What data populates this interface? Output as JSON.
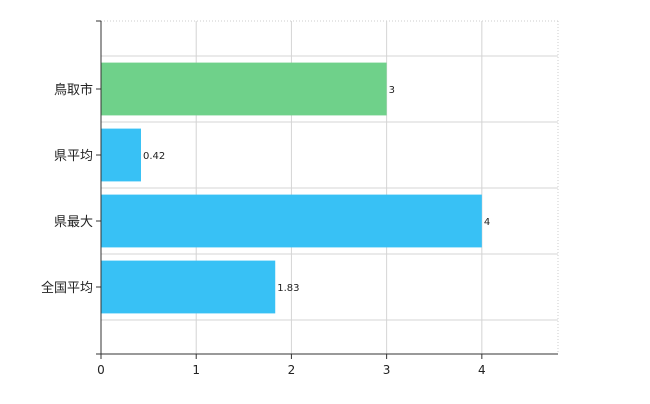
{
  "chart_data": {
    "type": "bar",
    "orientation": "horizontal",
    "categories": [
      "鳥取市",
      "県平均",
      "県最大",
      "全国平均"
    ],
    "values": [
      3,
      0.42,
      4,
      1.83
    ],
    "value_labels": [
      "3",
      "0.42",
      "4",
      "1.83"
    ],
    "bar_colors": [
      "#6fd18a",
      "#38c1f5",
      "#38c1f5",
      "#38c1f5"
    ],
    "xlim": [
      0,
      4.8
    ],
    "x_ticks": [
      "0",
      "1",
      "2",
      "3",
      "4"
    ],
    "grid": true,
    "title": "",
    "xlabel": "",
    "ylabel": ""
  }
}
